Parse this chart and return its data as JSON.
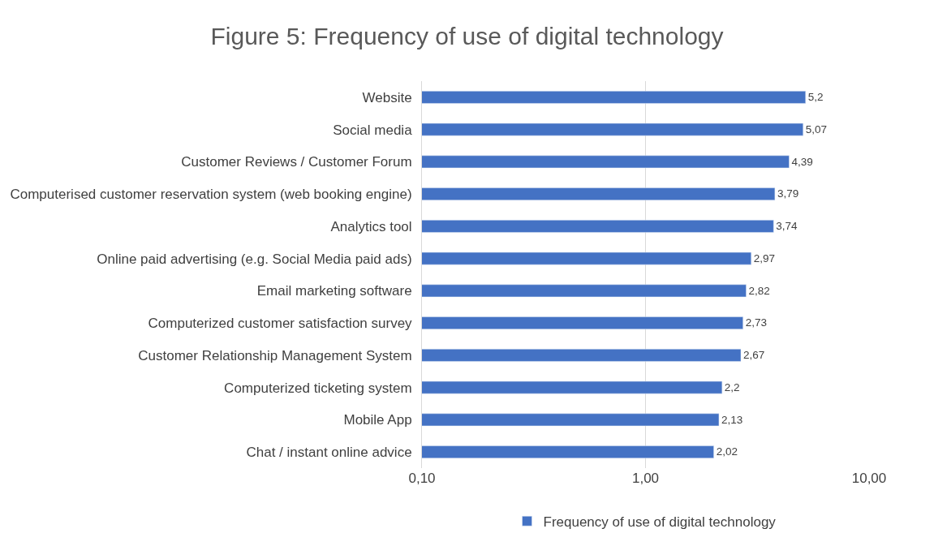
{
  "chart_data": {
    "type": "bar",
    "orientation": "horizontal",
    "title": "Figure 5: Frequency of use of digital technology",
    "categories": [
      "Website",
      "Social media",
      "Customer Reviews / Customer Forum",
      "Computerised customer reservation system (web booking engine)",
      "Analytics tool",
      "Online paid advertising (e.g. Social Media paid ads)",
      "Email marketing software",
      "Computerized customer satisfaction survey",
      "Customer Relationship Management System",
      "Computerized ticketing system",
      "Mobile App",
      "Chat / instant online advice"
    ],
    "series": [
      {
        "name": "Frequency of use of digital technology",
        "color": "#4472c4",
        "values": [
          5.2,
          5.07,
          4.39,
          3.79,
          3.74,
          2.97,
          2.82,
          2.73,
          2.67,
          2.2,
          2.13,
          2.02
        ],
        "value_labels": [
          "5,2",
          "5,07",
          "4,39",
          "3,79",
          "3,74",
          "2,97",
          "2,82",
          "2,73",
          "2,67",
          "2,2",
          "2,13",
          "2,02"
        ]
      }
    ],
    "log": "x",
    "xlim": [
      0.1,
      10
    ],
    "xticks": [
      {
        "value": 0.1,
        "label": "0,10"
      },
      {
        "value": 1,
        "label": "1,00"
      },
      {
        "value": 10,
        "label": "10,00"
      }
    ],
    "grid": "x",
    "legend": "bottom"
  }
}
